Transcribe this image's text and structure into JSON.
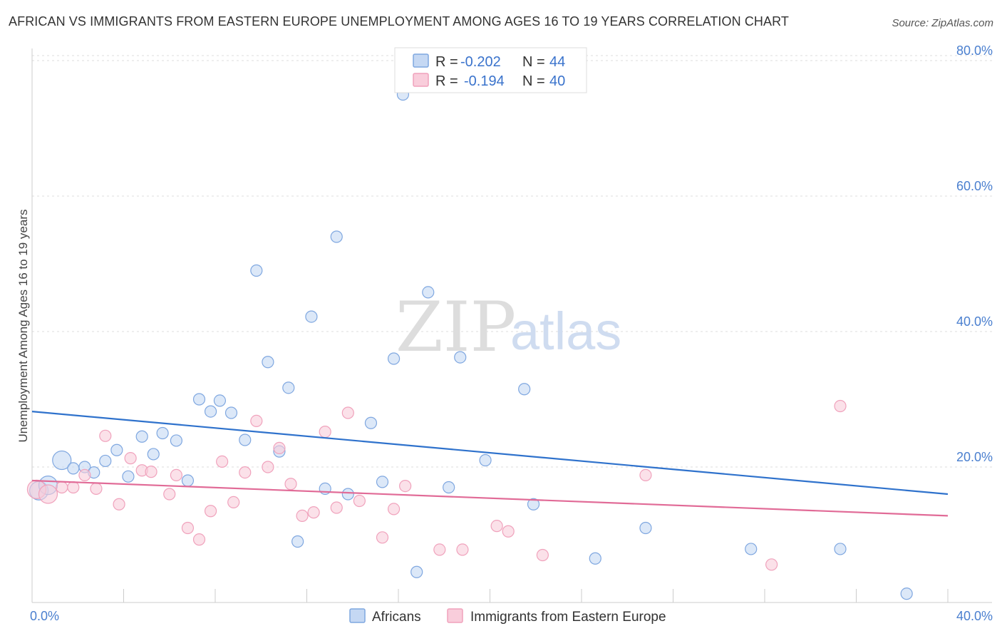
{
  "title": "AFRICAN VS IMMIGRANTS FROM EASTERN EUROPE UNEMPLOYMENT AMONG AGES 16 TO 19 YEARS CORRELATION CHART",
  "source": "Source: ZipAtlas.com",
  "watermark": {
    "zip": "ZIP",
    "atlas": "atlas"
  },
  "legend": {
    "rows": [
      {
        "r_label": "R =",
        "r_value": "-0.202",
        "n_label": "N =",
        "n_value": "44"
      },
      {
        "r_label": "R =",
        "r_value": "-0.194",
        "n_label": "N =",
        "n_value": "40"
      }
    ]
  },
  "bottom_legend": [
    "Africans",
    "Immigrants from Eastern Europe"
  ],
  "chart_data": {
    "type": "scatter",
    "title": "AFRICAN VS IMMIGRANTS FROM EASTERN EUROPE UNEMPLOYMENT AMONG AGES 16 TO 19 YEARS CORRELATION CHART",
    "xlabel": "",
    "ylabel": "Unemployment Among Ages 16 to 19 years",
    "xlim": [
      0,
      40
    ],
    "ylim": [
      0,
      82
    ],
    "x_tick_labels": [
      "0.0%",
      "40.0%"
    ],
    "y_ticks": [
      20,
      40,
      60,
      80
    ],
    "y_tick_labels": [
      "20.0%",
      "40.0%",
      "60.0%",
      "80.0%"
    ],
    "grid": true,
    "series": [
      {
        "name": "Africans",
        "color": "#7fa7e0",
        "fill": "#c5d8f3",
        "line_color": "#2f72cc",
        "trend": {
          "x": [
            0,
            40
          ],
          "y": [
            28.2,
            16.0
          ]
        },
        "points": [
          {
            "x": 0.3,
            "y": 16.5,
            "big": true
          },
          {
            "x": 0.7,
            "y": 17.3,
            "big": true
          },
          {
            "x": 1.3,
            "y": 21.0,
            "big": true
          },
          {
            "x": 1.8,
            "y": 19.8
          },
          {
            "x": 2.3,
            "y": 20.0
          },
          {
            "x": 2.7,
            "y": 19.2
          },
          {
            "x": 3.2,
            "y": 20.9
          },
          {
            "x": 3.7,
            "y": 22.5
          },
          {
            "x": 4.2,
            "y": 18.6
          },
          {
            "x": 4.8,
            "y": 24.5
          },
          {
            "x": 5.3,
            "y": 21.9
          },
          {
            "x": 5.7,
            "y": 25.0
          },
          {
            "x": 6.3,
            "y": 23.9
          },
          {
            "x": 6.8,
            "y": 18.0
          },
          {
            "x": 7.3,
            "y": 30.0
          },
          {
            "x": 7.8,
            "y": 28.2
          },
          {
            "x": 8.2,
            "y": 29.8
          },
          {
            "x": 8.7,
            "y": 28.0
          },
          {
            "x": 9.3,
            "y": 24.0
          },
          {
            "x": 9.8,
            "y": 49.0
          },
          {
            "x": 10.3,
            "y": 35.5
          },
          {
            "x": 10.8,
            "y": 22.3
          },
          {
            "x": 11.2,
            "y": 31.7
          },
          {
            "x": 11.6,
            "y": 9.0
          },
          {
            "x": 12.2,
            "y": 42.2
          },
          {
            "x": 12.8,
            "y": 16.8
          },
          {
            "x": 13.3,
            "y": 54.0
          },
          {
            "x": 13.8,
            "y": 16.0
          },
          {
            "x": 14.8,
            "y": 26.5
          },
          {
            "x": 15.3,
            "y": 17.8
          },
          {
            "x": 15.8,
            "y": 36.0
          },
          {
            "x": 16.2,
            "y": 75.0
          },
          {
            "x": 16.8,
            "y": 4.5
          },
          {
            "x": 17.3,
            "y": 45.8
          },
          {
            "x": 18.2,
            "y": 17.0
          },
          {
            "x": 18.7,
            "y": 36.2
          },
          {
            "x": 19.8,
            "y": 21.0
          },
          {
            "x": 21.5,
            "y": 31.5
          },
          {
            "x": 21.9,
            "y": 14.5
          },
          {
            "x": 24.6,
            "y": 6.5
          },
          {
            "x": 26.8,
            "y": 11.0
          },
          {
            "x": 31.4,
            "y": 7.9
          },
          {
            "x": 35.3,
            "y": 7.9
          },
          {
            "x": 38.2,
            "y": 1.3
          }
        ]
      },
      {
        "name": "Immigrants from Eastern Europe",
        "color": "#f0a2bc",
        "fill": "#f9cddb",
        "line_color": "#e16b97",
        "trend": {
          "x": [
            0,
            40
          ],
          "y": [
            18.0,
            12.8
          ]
        },
        "points": [
          {
            "x": 0.2,
            "y": 16.7,
            "big": true
          },
          {
            "x": 0.7,
            "y": 16.0,
            "big": true
          },
          {
            "x": 1.3,
            "y": 17.0
          },
          {
            "x": 1.8,
            "y": 17.0
          },
          {
            "x": 2.3,
            "y": 18.8
          },
          {
            "x": 2.8,
            "y": 16.8
          },
          {
            "x": 3.2,
            "y": 24.6
          },
          {
            "x": 3.8,
            "y": 14.5
          },
          {
            "x": 4.3,
            "y": 21.3
          },
          {
            "x": 4.8,
            "y": 19.5
          },
          {
            "x": 5.2,
            "y": 19.3
          },
          {
            "x": 6.0,
            "y": 16.0
          },
          {
            "x": 6.3,
            "y": 18.8
          },
          {
            "x": 6.8,
            "y": 11.0
          },
          {
            "x": 7.3,
            "y": 9.3
          },
          {
            "x": 7.8,
            "y": 13.5
          },
          {
            "x": 8.3,
            "y": 20.8
          },
          {
            "x": 8.8,
            "y": 14.8
          },
          {
            "x": 9.3,
            "y": 19.2
          },
          {
            "x": 9.8,
            "y": 26.8
          },
          {
            "x": 10.3,
            "y": 20.0
          },
          {
            "x": 10.8,
            "y": 22.8
          },
          {
            "x": 11.3,
            "y": 17.5
          },
          {
            "x": 11.8,
            "y": 12.8
          },
          {
            "x": 12.3,
            "y": 13.3
          },
          {
            "x": 12.8,
            "y": 25.2
          },
          {
            "x": 13.3,
            "y": 14.0
          },
          {
            "x": 13.8,
            "y": 28.0
          },
          {
            "x": 14.3,
            "y": 15.0
          },
          {
            "x": 15.3,
            "y": 9.6
          },
          {
            "x": 15.8,
            "y": 13.8
          },
          {
            "x": 16.3,
            "y": 17.2
          },
          {
            "x": 17.8,
            "y": 7.8
          },
          {
            "x": 18.8,
            "y": 7.8
          },
          {
            "x": 20.3,
            "y": 11.3
          },
          {
            "x": 20.8,
            "y": 10.5
          },
          {
            "x": 22.3,
            "y": 7.0
          },
          {
            "x": 26.8,
            "y": 18.8
          },
          {
            "x": 32.3,
            "y": 5.6
          },
          {
            "x": 35.3,
            "y": 29.0
          }
        ]
      }
    ]
  }
}
